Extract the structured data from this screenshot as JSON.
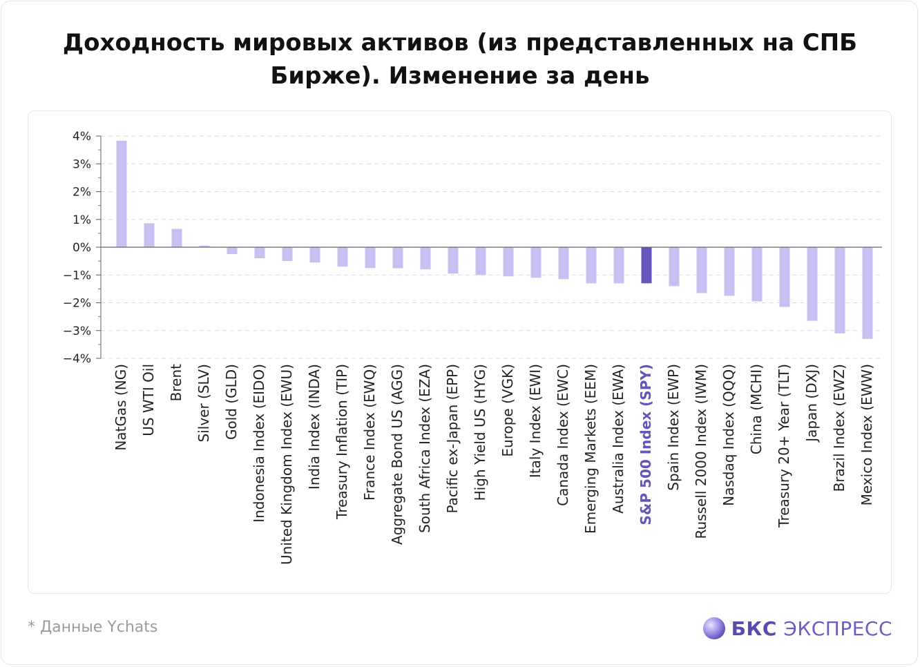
{
  "title": "Доходность мировых активов (из представленных на СПБ Бирже). Изменение за день",
  "footnote": "* Данные Ychats",
  "brand": {
    "bold": "БКС",
    "light": "ЭКСПРЕСС"
  },
  "colors": {
    "bar": "#c9c0f2",
    "highlight": "#6654bd",
    "grid": "#d9d9de",
    "text": "#222222"
  },
  "chart_data": {
    "type": "bar",
    "ylim": [
      -4,
      4
    ],
    "yticks": [
      "4%",
      "3%",
      "2%",
      "1%",
      "0%",
      "−1%",
      "−2%",
      "−3%",
      "−4%"
    ],
    "grid": true,
    "highlight_category": "S&P 500 Index (SPY)",
    "categories": [
      "NatGas (NG)",
      "US WTI Oil",
      "Brent",
      "Silver (SLV)",
      "Gold (GLD)",
      "Indonesia Index (EIDO)",
      "United Kingdom Index (EWU)",
      "India Index (INDA)",
      "Treasury Inflation (TIP)",
      "France Index (EWQ)",
      "Aggregate Bond US (AGG)",
      "South Africa Index (EZA)",
      "Pacific ex-Japan (EPP)",
      "High Yield US (HYG)",
      "Europe (VGK)",
      "Italy Index (EWI)",
      "Canada Index (EWC)",
      "Emerging Markets (EEM)",
      "Australia Index (EWA)",
      "S&P 500 Index (SPY)",
      "Spain Index (EWP)",
      "Russell 2000 Index (IWM)",
      "Nasdaq Index (QQQ)",
      "China (MCHI)",
      "Treasury 20+ Year (TLT)",
      "Japan (DXJ)",
      "Brazil Index (EWZ)",
      "Mexico Index (EWW)"
    ],
    "values": [
      3.83,
      0.86,
      0.66,
      0.06,
      -0.25,
      -0.4,
      -0.5,
      -0.55,
      -0.7,
      -0.75,
      -0.76,
      -0.8,
      -0.95,
      -1.0,
      -1.05,
      -1.1,
      -1.15,
      -1.3,
      -1.3,
      -1.3,
      -1.4,
      -1.65,
      -1.75,
      -1.95,
      -2.15,
      -2.65,
      -3.1,
      -3.3
    ]
  }
}
